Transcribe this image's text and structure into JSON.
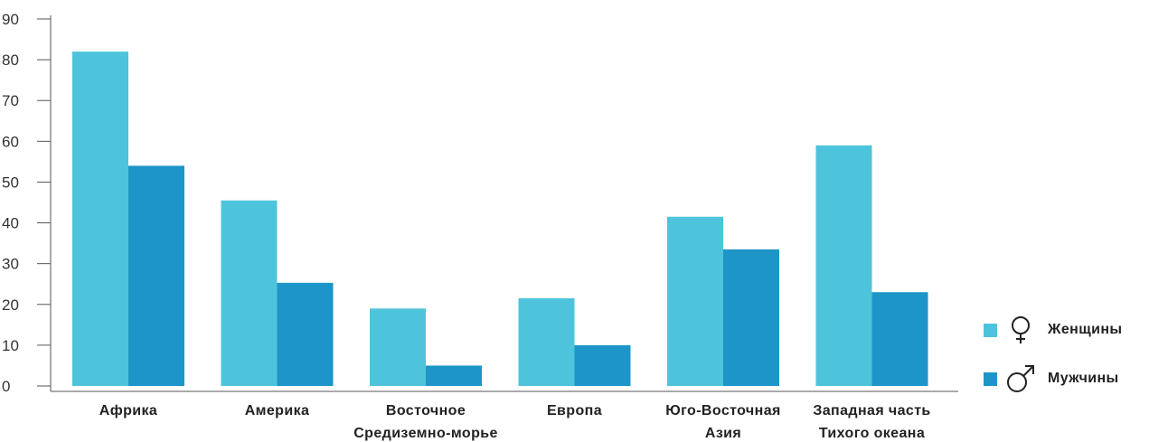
{
  "chart_data": {
    "type": "bar",
    "categories": [
      [
        "Африка"
      ],
      [
        "Америка"
      ],
      [
        "Восточное",
        "Средиземно-морье"
      ],
      [
        "Европа"
      ],
      [
        "Юго-Восточная",
        "Азия"
      ],
      [
        "Западная часть",
        "Тихого океана"
      ]
    ],
    "series": [
      {
        "name": "Женщины",
        "values": [
          82,
          45.5,
          19,
          21.5,
          41.5,
          59
        ],
        "color": "#4ec4dc"
      },
      {
        "name": "Мужчины",
        "values": [
          54,
          25.3,
          5,
          10,
          33.5,
          23
        ],
        "color": "#1e95c8"
      }
    ],
    "y_ticks": [
      0,
      10,
      20,
      30,
      40,
      50,
      60,
      70,
      80,
      90
    ],
    "ylim": [
      0,
      90
    ],
    "grid": false,
    "legend_position": "right-bottom",
    "legend_icons": [
      "female-symbol",
      "male-symbol"
    ]
  }
}
